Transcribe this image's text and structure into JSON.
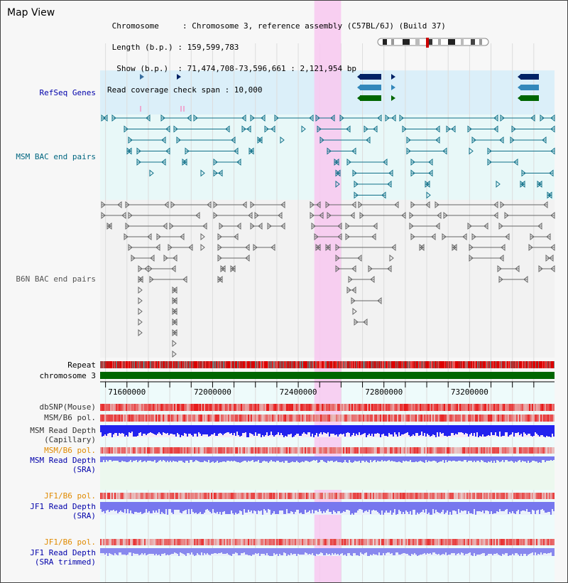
{
  "header": {
    "view_title": "Map View",
    "info_lines": [
      " Chromosome     : Chromosome 3, reference assembly (C57BL/6J) (Build 37)",
      " Length (b.p.) : 159,599,783",
      "  Show (b.p.)  : 71,474,708-73,596,661 : 2,121,954 bp",
      "Read coverage check span : 10,000"
    ]
  },
  "view": {
    "start": 71474708,
    "end": 73596661,
    "highlight_start": 72475000,
    "highlight_end": 72600000
  },
  "tracks": {
    "refseq": {
      "label": "RefSeq Genes",
      "color": "#0000aa"
    },
    "msm_bac": {
      "label": "MSM BAC end pairs",
      "color": "#006680"
    },
    "b6n_bac": {
      "label": "B6N BAC end pairs",
      "color": "#555555"
    },
    "repeat": {
      "label": "Repeat"
    },
    "chromosome": {
      "label": "chromosome 3",
      "color": "#006600"
    },
    "dbsnp": {
      "label": "dbSNP(Mouse)"
    },
    "msm_b6_pol": {
      "label": "MSM/B6 pol."
    },
    "msm_read_depth_cap": {
      "label": "MSM Read Depth\n(Capillary)"
    },
    "msm_b6_pol_sra": {
      "label": "MSM/B6 pol.",
      "color": "#e08a00"
    },
    "msm_read_depth_sra": {
      "label": "MSM Read Depth\n(SRA)",
      "color": "#0000aa"
    },
    "jf1_b6_pol": {
      "label": "JF1/B6 pol.",
      "color": "#e08a00"
    },
    "jf1_read_depth_sra": {
      "label": "JF1 Read Depth\n(SRA)",
      "color": "#0000aa"
    },
    "jf1_b6_pol_trim": {
      "label": "JF1/B6 pol.",
      "color": "#e08a00"
    },
    "jf1_read_depth_trim": {
      "label": "JF1 Read Depth\n(SRA trimmed)",
      "color": "#0000aa"
    }
  },
  "axis": {
    "ticks": [
      71600000,
      72000000,
      72400000,
      72800000,
      73200000
    ],
    "tick_labels": [
      "71600000",
      "72000000",
      "72400000",
      "72800000",
      "73200000"
    ]
  },
  "colors": {
    "highlight": "#f8c8f0",
    "gene_navy": "#002266",
    "gene_teal": "#3388bb",
    "gene_green": "#006600",
    "depth_blue": "#2222ee",
    "depth_light": "#7777ee",
    "pol_red": "#e82020"
  }
}
